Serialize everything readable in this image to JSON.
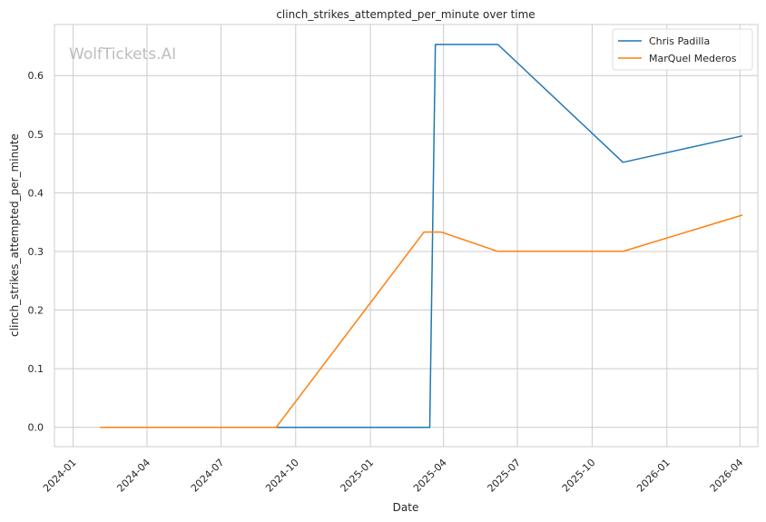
{
  "chart_data": {
    "type": "line",
    "title": "clinch_strikes_attempted_per_minute over time",
    "xlabel": "Date",
    "ylabel": "clinch_strikes_attempted_per_minute",
    "watermark": "WolfTickets.AI",
    "x_range": [
      "2023-12-09",
      "2026-04-23"
    ],
    "ylim": [
      -0.033,
      0.687
    ],
    "x_ticks": [
      "2024-01",
      "2024-04",
      "2024-07",
      "2024-10",
      "2025-01",
      "2025-04",
      "2025-07",
      "2025-10",
      "2026-01",
      "2026-04"
    ],
    "y_ticks": [
      "0.0",
      "0.1",
      "0.2",
      "0.3",
      "0.4",
      "0.5",
      "0.6"
    ],
    "grid": true,
    "legend_position": "top-right",
    "series": [
      {
        "name": "Chris Padilla",
        "color": "#1f77b4",
        "points": [
          {
            "x": "2024-04-27",
            "y": 0.0
          },
          {
            "x": "2025-03-15",
            "y": 0.0
          },
          {
            "x": "2025-03-22",
            "y": 0.653
          },
          {
            "x": "2025-06-07",
            "y": 0.653
          },
          {
            "x": "2025-11-08",
            "y": 0.452
          },
          {
            "x": "2026-04-04",
            "y": 0.497
          }
        ]
      },
      {
        "name": "MarQuel Mederos",
        "color": "#ff7f0e",
        "points": [
          {
            "x": "2024-02-03",
            "y": 0.0
          },
          {
            "x": "2024-09-07",
            "y": 0.0
          },
          {
            "x": "2025-03-08",
            "y": 0.333
          },
          {
            "x": "2025-03-29",
            "y": 0.333
          },
          {
            "x": "2025-06-07",
            "y": 0.3
          },
          {
            "x": "2025-11-08",
            "y": 0.3
          },
          {
            "x": "2026-04-04",
            "y": 0.362
          }
        ]
      }
    ]
  }
}
